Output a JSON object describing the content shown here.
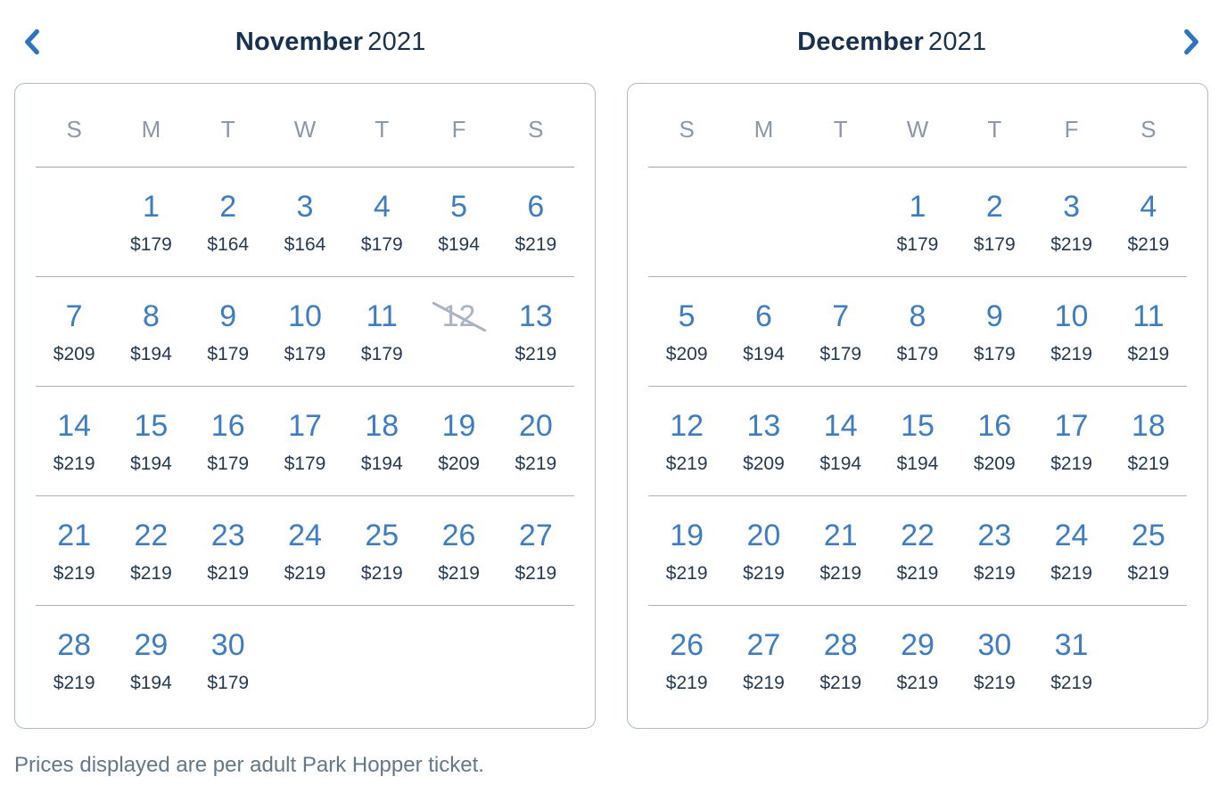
{
  "header": {
    "prev_button": "Previous month",
    "next_button": "Next month"
  },
  "months": [
    {
      "name": "November",
      "year": "2021",
      "day_headers": [
        "S",
        "M",
        "T",
        "W",
        "T",
        "F",
        "S"
      ],
      "weeks": [
        [
          {
            "day": "",
            "price": ""
          },
          {
            "day": "1",
            "price": "$179"
          },
          {
            "day": "2",
            "price": "$164"
          },
          {
            "day": "3",
            "price": "$164"
          },
          {
            "day": "4",
            "price": "$179"
          },
          {
            "day": "5",
            "price": "$194"
          },
          {
            "day": "6",
            "price": "$219"
          }
        ],
        [
          {
            "day": "7",
            "price": "$209"
          },
          {
            "day": "8",
            "price": "$194"
          },
          {
            "day": "9",
            "price": "$179"
          },
          {
            "day": "10",
            "price": "$179"
          },
          {
            "day": "11",
            "price": "$179"
          },
          {
            "day": "12",
            "price": "",
            "disabled": true
          },
          {
            "day": "13",
            "price": "$219"
          }
        ],
        [
          {
            "day": "14",
            "price": "$219"
          },
          {
            "day": "15",
            "price": "$194"
          },
          {
            "day": "16",
            "price": "$179"
          },
          {
            "day": "17",
            "price": "$179"
          },
          {
            "day": "18",
            "price": "$194"
          },
          {
            "day": "19",
            "price": "$209"
          },
          {
            "day": "20",
            "price": "$219"
          }
        ],
        [
          {
            "day": "21",
            "price": "$219"
          },
          {
            "day": "22",
            "price": "$219"
          },
          {
            "day": "23",
            "price": "$219"
          },
          {
            "day": "24",
            "price": "$219"
          },
          {
            "day": "25",
            "price": "$219"
          },
          {
            "day": "26",
            "price": "$219"
          },
          {
            "day": "27",
            "price": "$219"
          }
        ],
        [
          {
            "day": "28",
            "price": "$219"
          },
          {
            "day": "29",
            "price": "$194"
          },
          {
            "day": "30",
            "price": "$179"
          },
          {
            "day": "",
            "price": ""
          },
          {
            "day": "",
            "price": ""
          },
          {
            "day": "",
            "price": ""
          },
          {
            "day": "",
            "price": ""
          }
        ]
      ]
    },
    {
      "name": "December",
      "year": "2021",
      "day_headers": [
        "S",
        "M",
        "T",
        "W",
        "T",
        "F",
        "S"
      ],
      "weeks": [
        [
          {
            "day": "",
            "price": ""
          },
          {
            "day": "",
            "price": ""
          },
          {
            "day": "",
            "price": ""
          },
          {
            "day": "1",
            "price": "$179"
          },
          {
            "day": "2",
            "price": "$179"
          },
          {
            "day": "3",
            "price": "$219"
          },
          {
            "day": "4",
            "price": "$219"
          }
        ],
        [
          {
            "day": "5",
            "price": "$209"
          },
          {
            "day": "6",
            "price": "$194"
          },
          {
            "day": "7",
            "price": "$179"
          },
          {
            "day": "8",
            "price": "$179"
          },
          {
            "day": "9",
            "price": "$179"
          },
          {
            "day": "10",
            "price": "$219"
          },
          {
            "day": "11",
            "price": "$219"
          }
        ],
        [
          {
            "day": "12",
            "price": "$219"
          },
          {
            "day": "13",
            "price": "$209"
          },
          {
            "day": "14",
            "price": "$194"
          },
          {
            "day": "15",
            "price": "$194"
          },
          {
            "day": "16",
            "price": "$209"
          },
          {
            "day": "17",
            "price": "$219"
          },
          {
            "day": "18",
            "price": "$219"
          }
        ],
        [
          {
            "day": "19",
            "price": "$219"
          },
          {
            "day": "20",
            "price": "$219"
          },
          {
            "day": "21",
            "price": "$219"
          },
          {
            "day": "22",
            "price": "$219"
          },
          {
            "day": "23",
            "price": "$219"
          },
          {
            "day": "24",
            "price": "$219"
          },
          {
            "day": "25",
            "price": "$219"
          }
        ],
        [
          {
            "day": "26",
            "price": "$219"
          },
          {
            "day": "27",
            "price": "$219"
          },
          {
            "day": "28",
            "price": "$219"
          },
          {
            "day": "29",
            "price": "$219"
          },
          {
            "day": "30",
            "price": "$219"
          },
          {
            "day": "31",
            "price": "$219"
          },
          {
            "day": "",
            "price": ""
          }
        ]
      ]
    }
  ],
  "footer_note": "Prices displayed are per adult Park Hopper ticket.",
  "colors": {
    "date_blue": "#3e7dc2",
    "chevron_blue": "#2f74c0",
    "title_navy": "#17314e",
    "price_navy": "#243a52",
    "weekday_gray": "#8b98a9",
    "disabled_gray": "#a9b4c2",
    "row_line_gray": "#aab4bf",
    "header_line_gray": "#9aa6b4",
    "panel_border_gray": "#aeb9ca",
    "footer_gray": "#627889"
  }
}
